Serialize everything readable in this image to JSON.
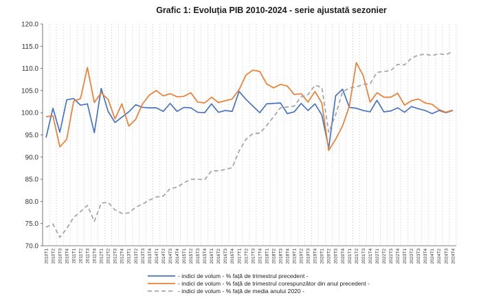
{
  "chart_data": {
    "type": "line",
    "title": "Grafic 1: Evoluția PIB 2010-2024 - serie ajustată sezonier",
    "xlabel": "",
    "ylabel": "",
    "ylim": [
      70,
      120
    ],
    "yticks": [
      "70.0",
      "75.0",
      "80.0",
      "85.0",
      "90.0",
      "95.0",
      "100.0",
      "105.0",
      "110.0",
      "115.0",
      "120.0"
    ],
    "grid": "vertical-dashed",
    "legend_position": "bottom",
    "categories": [
      "2010T1",
      "2010T2",
      "2010T3",
      "2010T4",
      "2011T1",
      "2011T2",
      "2011T3",
      "2011T4",
      "2012T1",
      "2012T2",
      "2012T3",
      "2012T4",
      "2013T1",
      "2013T2",
      "2013T3",
      "2013T4",
      "2014T1",
      "2014T2",
      "2014T3",
      "2014T4",
      "2015T1",
      "2015T2",
      "2015T3",
      "2015T4",
      "2016T1",
      "2016T2",
      "2016T3",
      "2016T4",
      "2017T1",
      "2017T2",
      "2017T3",
      "2017T4",
      "2018T1",
      "2018T2",
      "2018T3",
      "2018T4",
      "2019T1",
      "2019T2",
      "2019T3",
      "2019T4",
      "2020T1",
      "2020T2",
      "2020T3",
      "2020T4",
      "2021T1",
      "2021T2",
      "2021T3",
      "2021T4",
      "2022T1",
      "2022T2",
      "2022T3",
      "2022T4",
      "2023T1",
      "2023T2",
      "2023T3",
      "2023T4",
      "2024T1",
      "2024T2",
      "2024T3",
      "2024T4"
    ],
    "series": [
      {
        "name": "- indici de volum - % față de trimestrul precedent -",
        "color": "#4472c4",
        "dash": "solid",
        "values": [
          94.4,
          101.0,
          95.6,
          102.9,
          103.2,
          101.7,
          102.0,
          95.5,
          105.5,
          100.3,
          97.8,
          99.0,
          100.2,
          101.8,
          101.2,
          101.1,
          101.1,
          100.3,
          102.1,
          100.3,
          101.2,
          101.1,
          100.1,
          100.0,
          102.0,
          100.1,
          100.5,
          100.3,
          104.8,
          103.0,
          101.5,
          100.0,
          102.0,
          102.1,
          102.2,
          99.8,
          100.2,
          102.1,
          100.5,
          102.0,
          99.5,
          92.0,
          103.8,
          105.3,
          101.2,
          101.0,
          100.5,
          100.2,
          102.8,
          100.2,
          100.4,
          101.1,
          100.1,
          101.4,
          100.9,
          100.5,
          99.8,
          100.5,
          100.0,
          100.5
        ]
      },
      {
        "name": "- indici de volum - % față de trimestrul corespunzător din anul precedent -",
        "color": "#ed7d31",
        "dash": "solid",
        "values": [
          99.1,
          99.3,
          92.3,
          94.0,
          102.6,
          103.2,
          110.2,
          102.3,
          104.5,
          103.0,
          98.6,
          102.0,
          97.0,
          98.5,
          102.0,
          104.0,
          105.0,
          103.8,
          104.3,
          103.6,
          103.7,
          104.5,
          102.4,
          102.2,
          103.5,
          102.3,
          102.7,
          103.1,
          105.2,
          108.5,
          109.6,
          109.3,
          106.5,
          105.6,
          106.4,
          106.0,
          104.1,
          104.3,
          102.4,
          104.8,
          102.2,
          91.5,
          94.0,
          97.0,
          101.5,
          111.3,
          108.4,
          102.4,
          104.5,
          103.5,
          103.5,
          104.4,
          101.7,
          102.7,
          103.1,
          102.2,
          101.9,
          100.7,
          100.1,
          100.6
        ]
      },
      {
        "name": "- indici de volum - % față de media anului 2020 -",
        "color": "#a6a6a6",
        "dash": "dashed",
        "values": [
          74.2,
          74.9,
          71.9,
          73.9,
          76.4,
          77.7,
          79.1,
          75.5,
          79.6,
          79.8,
          78.1,
          77.3,
          77.4,
          78.7,
          79.4,
          80.3,
          81.0,
          81.2,
          82.9,
          83.2,
          84.2,
          85.0,
          85.0,
          84.9,
          86.9,
          86.9,
          87.2,
          87.6,
          91.4,
          94.0,
          95.3,
          95.4,
          97.1,
          99.1,
          101.1,
          101.3,
          101.5,
          103.6,
          104.1,
          106.2,
          105.7,
          95.6,
          99.5,
          104.7,
          105.6,
          105.8,
          106.4,
          106.5,
          109.1,
          109.3,
          109.5,
          110.9,
          110.8,
          112.3,
          113.0,
          113.2,
          112.9,
          113.3,
          113.1,
          113.8
        ]
      }
    ]
  }
}
